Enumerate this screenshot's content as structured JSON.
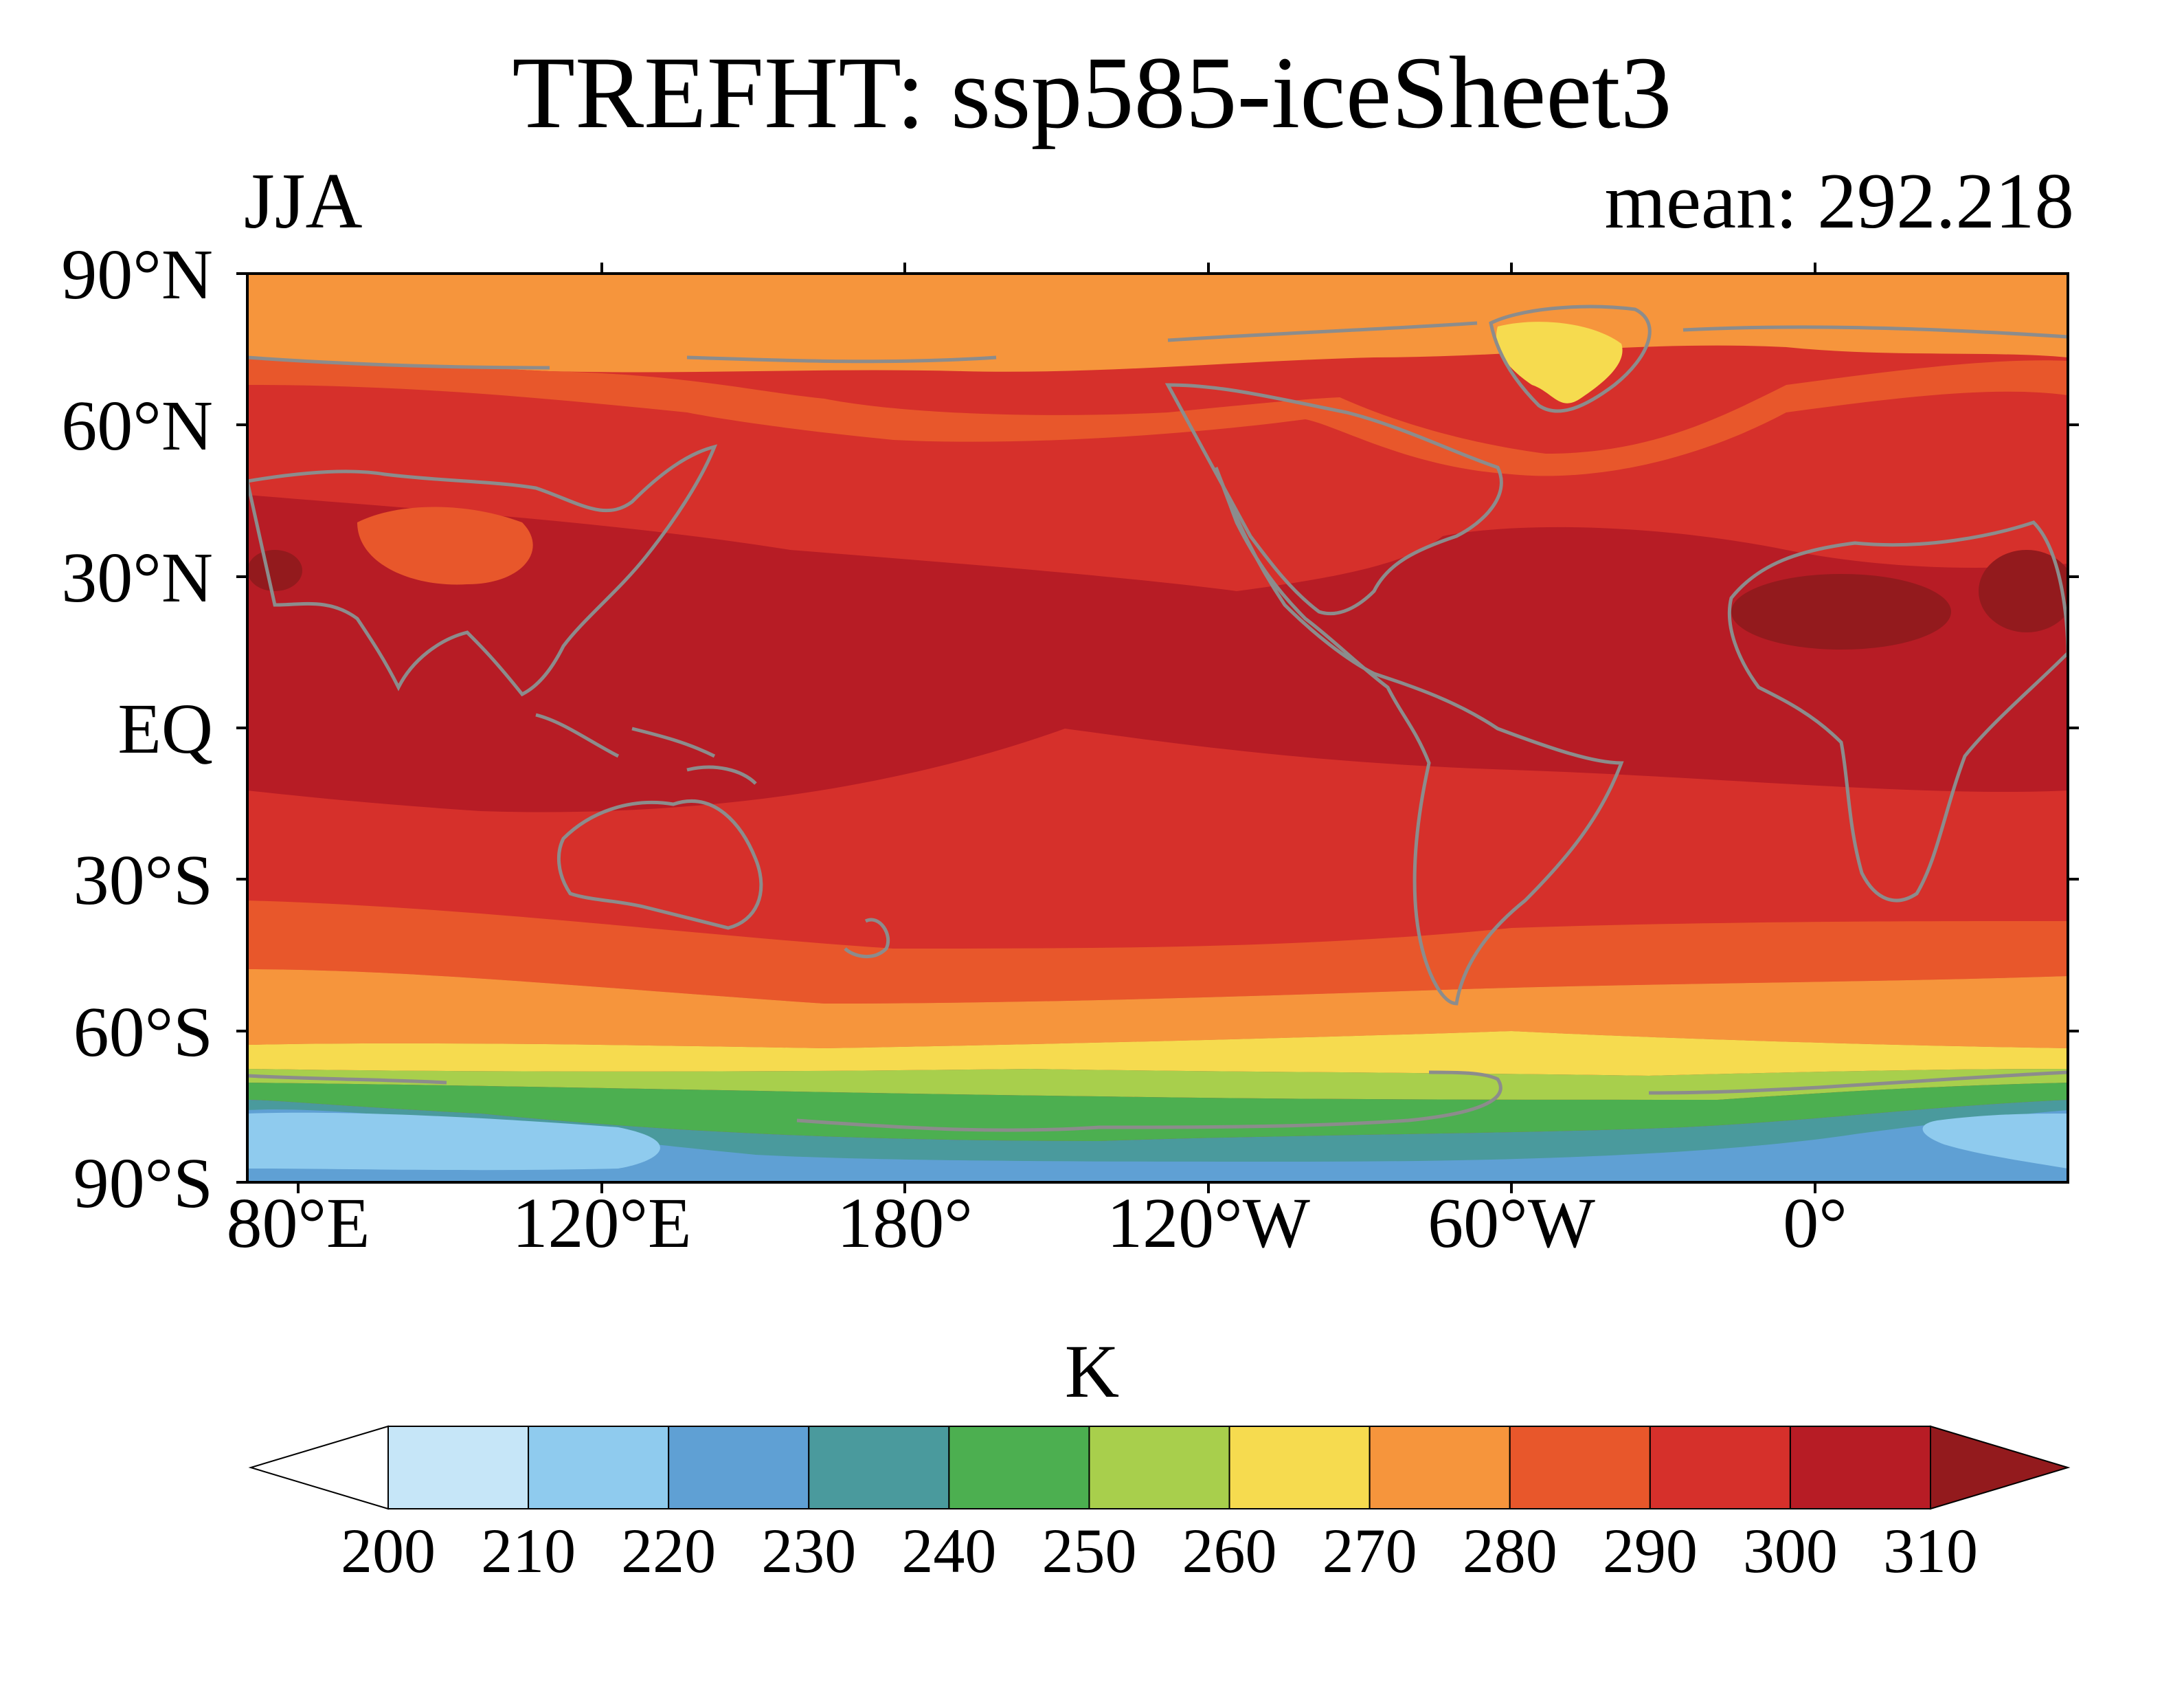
{
  "title": "TREFHT: ssp585-iceSheet3",
  "left_label": "JJA",
  "right_label": "mean: 292.218",
  "lat_labels": [
    "90°N",
    "60°N",
    "30°N",
    "EQ",
    "30°S",
    "60°S",
    "90°S"
  ],
  "lon_labels": [
    "80°E",
    "120°E",
    "180°",
    "120°W",
    "60°W",
    "0°"
  ],
  "colorbar": {
    "unit": "K",
    "ticks": [
      "200",
      "210",
      "220",
      "230",
      "240",
      "250",
      "260",
      "270",
      "280",
      "290",
      "300",
      "310"
    ],
    "colors": [
      "#ffffff",
      "#c6e6f8",
      "#8fcbee",
      "#5fa0d4",
      "#4a9a9d",
      "#4caf50",
      "#a8cf4c",
      "#f6db4f",
      "#f6953c",
      "#e8572b",
      "#d6302b",
      "#b71c25",
      "#931a1d"
    ]
  },
  "coastline_color": "#8c8c8c",
  "chart_data": {
    "type": "heatmap",
    "variable": "TREFHT",
    "unit": "K",
    "season": "JJA",
    "mean": 292.218,
    "projection": "equirectangular",
    "lon_range": [
      60,
      420
    ],
    "lat_range": [
      -90,
      90
    ],
    "levels": [
      200,
      210,
      220,
      230,
      240,
      250,
      260,
      270,
      280,
      290,
      300,
      310
    ]
  }
}
